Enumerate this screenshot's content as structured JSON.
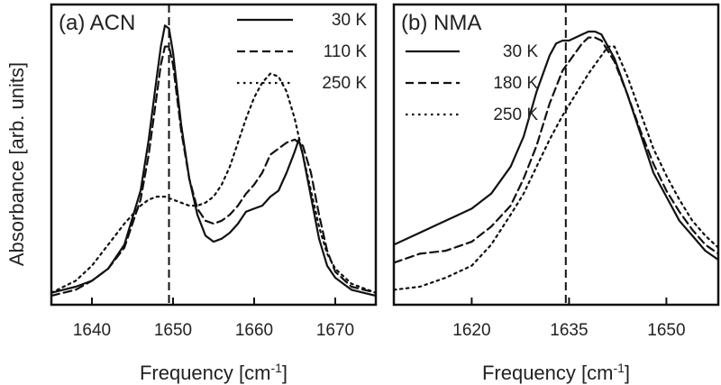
{
  "chart_data": [
    {
      "type": "line",
      "title": "(a) ACN",
      "xlabel": "Frequency [cm",
      "xlabel_sup": "-1",
      "xlabel_tail": "]",
      "ylabel": "Absorbance [arb. units]",
      "xlim": [
        1635,
        1675
      ],
      "ylim": [
        0,
        1
      ],
      "xticks": [
        "1640",
        "1650",
        "1660",
        "1670"
      ],
      "xtick_values": [
        1640,
        1650,
        1660,
        1670
      ],
      "reference_line_x": 1649.5,
      "legend_position": "top-right",
      "series": [
        {
          "name": "30 K",
          "style": "solid",
          "x": [
            1635,
            1638,
            1640,
            1642,
            1644,
            1646,
            1647,
            1648,
            1648.5,
            1649,
            1649.5,
            1650,
            1650.5,
            1651,
            1652,
            1653,
            1654,
            1655,
            1656,
            1657,
            1658,
            1659,
            1660,
            1661,
            1662,
            1663,
            1664,
            1665,
            1665.5,
            1666,
            1667,
            1668,
            1669,
            1670,
            1672,
            1675
          ],
          "y": [
            0.04,
            0.06,
            0.08,
            0.12,
            0.2,
            0.38,
            0.55,
            0.76,
            0.86,
            0.93,
            0.92,
            0.84,
            0.72,
            0.6,
            0.42,
            0.3,
            0.23,
            0.21,
            0.22,
            0.24,
            0.27,
            0.31,
            0.32,
            0.33,
            0.36,
            0.38,
            0.44,
            0.51,
            0.55,
            0.5,
            0.36,
            0.22,
            0.13,
            0.09,
            0.05,
            0.03
          ]
        },
        {
          "name": "110 K",
          "style": "dashed",
          "x": [
            1635,
            1638,
            1640,
            1642,
            1644,
            1646,
            1647,
            1648,
            1648.5,
            1649,
            1649.5,
            1650,
            1651,
            1652,
            1653,
            1654,
            1655,
            1656,
            1657,
            1658,
            1659,
            1660,
            1661,
            1662,
            1663,
            1664,
            1665,
            1666,
            1667,
            1668,
            1669,
            1670,
            1672,
            1675
          ],
          "y": [
            0.03,
            0.05,
            0.08,
            0.12,
            0.19,
            0.35,
            0.5,
            0.7,
            0.8,
            0.86,
            0.86,
            0.8,
            0.58,
            0.42,
            0.32,
            0.28,
            0.27,
            0.28,
            0.3,
            0.33,
            0.37,
            0.4,
            0.44,
            0.5,
            0.52,
            0.54,
            0.55,
            0.53,
            0.44,
            0.3,
            0.18,
            0.11,
            0.06,
            0.04
          ]
        },
        {
          "name": "250 K",
          "style": "dotted",
          "x": [
            1635,
            1638,
            1640,
            1642,
            1644,
            1646,
            1647,
            1648,
            1649,
            1650,
            1651,
            1652,
            1653,
            1654,
            1655,
            1656,
            1657,
            1658,
            1659,
            1660,
            1661,
            1662,
            1663,
            1664,
            1665,
            1666,
            1667,
            1668,
            1669,
            1670,
            1672,
            1675
          ],
          "y": [
            0.04,
            0.08,
            0.13,
            0.2,
            0.27,
            0.33,
            0.35,
            0.36,
            0.36,
            0.35,
            0.34,
            0.33,
            0.33,
            0.34,
            0.36,
            0.4,
            0.46,
            0.54,
            0.62,
            0.69,
            0.74,
            0.77,
            0.76,
            0.71,
            0.62,
            0.5,
            0.38,
            0.26,
            0.17,
            0.12,
            0.07,
            0.04
          ]
        }
      ]
    },
    {
      "type": "line",
      "title": "(b) NMA",
      "xlabel": "Frequency [cm",
      "xlabel_sup": "-1",
      "xlabel_tail": "]",
      "xlim": [
        1608,
        1658
      ],
      "ylim": [
        0,
        1
      ],
      "xticks": [
        "1620",
        "1635",
        "1650"
      ],
      "xtick_values": [
        1620,
        1635,
        1650
      ],
      "reference_line_x": 1634.5,
      "legend_position": "top-left",
      "series": [
        {
          "name": "30 K",
          "style": "solid",
          "x": [
            1608,
            1612,
            1616,
            1620,
            1623,
            1626,
            1628,
            1630,
            1632,
            1633,
            1634,
            1635,
            1636,
            1637,
            1638,
            1639,
            1640,
            1642,
            1644,
            1646,
            1648,
            1650,
            1652,
            1654,
            1656,
            1658
          ],
          "y": [
            0.2,
            0.24,
            0.28,
            0.32,
            0.37,
            0.46,
            0.56,
            0.71,
            0.83,
            0.87,
            0.88,
            0.88,
            0.89,
            0.9,
            0.91,
            0.91,
            0.9,
            0.82,
            0.7,
            0.57,
            0.44,
            0.36,
            0.28,
            0.23,
            0.18,
            0.15
          ]
        },
        {
          "name": "180 K",
          "style": "dashed",
          "x": [
            1608,
            1612,
            1616,
            1620,
            1623,
            1626,
            1628,
            1630,
            1632,
            1634,
            1636,
            1637,
            1638,
            1639,
            1640,
            1642,
            1644,
            1646,
            1648,
            1650,
            1652,
            1654,
            1656,
            1658
          ],
          "y": [
            0.14,
            0.17,
            0.18,
            0.21,
            0.26,
            0.33,
            0.42,
            0.53,
            0.67,
            0.78,
            0.84,
            0.87,
            0.89,
            0.89,
            0.88,
            0.81,
            0.7,
            0.58,
            0.47,
            0.38,
            0.31,
            0.25,
            0.2,
            0.17
          ]
        },
        {
          "name": "250 K",
          "style": "dotted",
          "x": [
            1608,
            1612,
            1616,
            1620,
            1623,
            1626,
            1628,
            1630,
            1632,
            1634,
            1636,
            1638,
            1640,
            1641,
            1642,
            1644,
            1646,
            1648,
            1650,
            1652,
            1654,
            1656,
            1658
          ],
          "y": [
            0.05,
            0.06,
            0.09,
            0.13,
            0.2,
            0.3,
            0.37,
            0.46,
            0.55,
            0.63,
            0.7,
            0.77,
            0.83,
            0.86,
            0.86,
            0.76,
            0.64,
            0.52,
            0.43,
            0.35,
            0.28,
            0.23,
            0.19
          ]
        }
      ]
    }
  ]
}
